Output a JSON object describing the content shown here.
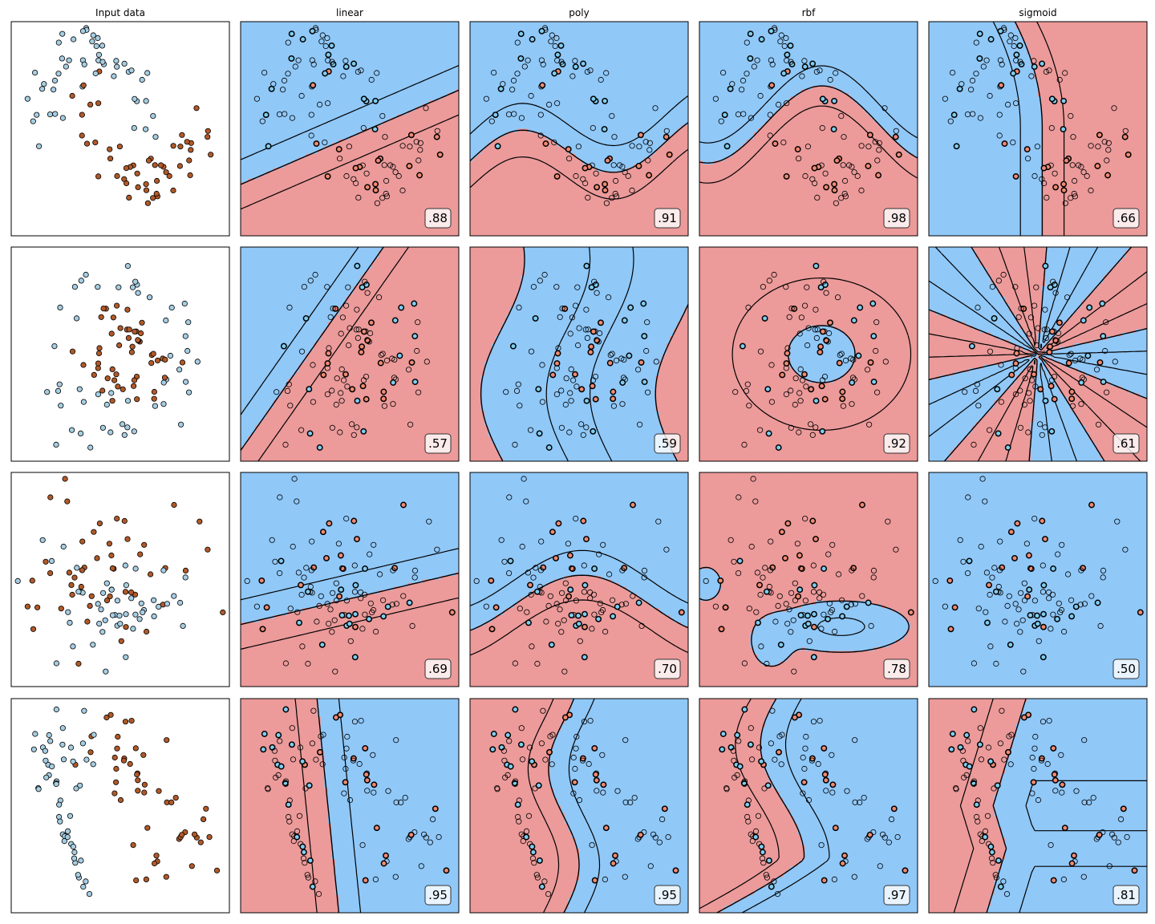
{
  "figure": {
    "columns": [
      "Input data",
      "linear",
      "poly",
      "rbf",
      "sigmoid"
    ],
    "colors": {
      "region_red": "#ec9a9a",
      "region_blue": "#90c8f8",
      "input_class0": "#a6cee3",
      "input_class1": "#b15928",
      "scored_class0": "#7fcdf0",
      "scored_class1": "#f08a72",
      "test_point_fill": "#ffffff",
      "point_edge": "#000000"
    }
  },
  "chart_data": [
    {
      "type": "scatter",
      "dataset": "moons",
      "column": "Input data",
      "xlim": [
        0,
        1
      ],
      "ylim": [
        0,
        1
      ],
      "grid": false,
      "n_points": 100,
      "classes": 2
    },
    {
      "type": "heatmap",
      "dataset": "moons",
      "column": "linear",
      "score": ".88"
    },
    {
      "type": "heatmap",
      "dataset": "moons",
      "column": "poly",
      "score": ".91"
    },
    {
      "type": "heatmap",
      "dataset": "moons",
      "column": "rbf",
      "score": ".98"
    },
    {
      "type": "heatmap",
      "dataset": "moons",
      "column": "sigmoid",
      "score": ".66"
    },
    {
      "type": "scatter",
      "dataset": "circles",
      "column": "Input data",
      "xlim": [
        0,
        1
      ],
      "ylim": [
        0,
        1
      ],
      "grid": false,
      "n_points": 100,
      "classes": 2
    },
    {
      "type": "heatmap",
      "dataset": "circles",
      "column": "linear",
      "score": ".57"
    },
    {
      "type": "heatmap",
      "dataset": "circles",
      "column": "poly",
      "score": ".59"
    },
    {
      "type": "heatmap",
      "dataset": "circles",
      "column": "rbf",
      "score": ".92"
    },
    {
      "type": "heatmap",
      "dataset": "circles",
      "column": "sigmoid",
      "score": ".61"
    },
    {
      "type": "scatter",
      "dataset": "blobs",
      "column": "Input data",
      "xlim": [
        0,
        1
      ],
      "ylim": [
        0,
        1
      ],
      "grid": false,
      "n_points": 100,
      "classes": 2
    },
    {
      "type": "heatmap",
      "dataset": "blobs",
      "column": "linear",
      "score": ".69"
    },
    {
      "type": "heatmap",
      "dataset": "blobs",
      "column": "poly",
      "score": ".70"
    },
    {
      "type": "heatmap",
      "dataset": "blobs",
      "column": "rbf",
      "score": ".78"
    },
    {
      "type": "heatmap",
      "dataset": "blobs",
      "column": "sigmoid",
      "score": ".50"
    },
    {
      "type": "scatter",
      "dataset": "lines",
      "column": "Input data",
      "xlim": [
        0,
        1
      ],
      "ylim": [
        0,
        1
      ],
      "grid": false,
      "n_points": 100,
      "classes": 2
    },
    {
      "type": "heatmap",
      "dataset": "lines",
      "column": "linear",
      "score": ".95"
    },
    {
      "type": "heatmap",
      "dataset": "lines",
      "column": "poly",
      "score": ".95"
    },
    {
      "type": "heatmap",
      "dataset": "lines",
      "column": "rbf",
      "score": ".97"
    },
    {
      "type": "heatmap",
      "dataset": "lines",
      "column": "sigmoid",
      "score": ".81"
    }
  ]
}
